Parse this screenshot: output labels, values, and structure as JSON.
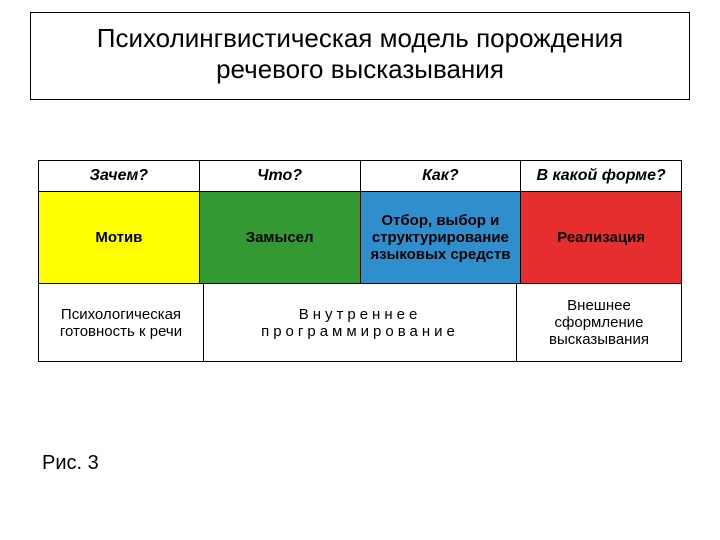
{
  "title_line1": "Психолингвистическая модель порождения",
  "title_line2": "речевого высказывания",
  "title_fontsize": 26,
  "questions": {
    "fontsize": 16,
    "items": [
      "Зачем?",
      "Что?",
      "Как?",
      "В какой форме?"
    ]
  },
  "stages": {
    "fontsize": 15,
    "text_color": "#000000",
    "cells": [
      {
        "label": "Мотив",
        "bg": "#ffff00"
      },
      {
        "label": "Замысел",
        "bg": "#339933"
      },
      {
        "label": "Отбор, выбор и структурирование языковых средств",
        "bg": "#2f8fcd"
      },
      {
        "label": "Реализация",
        "bg": "#e62e2e"
      }
    ]
  },
  "bottom": {
    "fontsize": 15,
    "cells": [
      {
        "label": "Психологическая готовность к речи",
        "span": 1,
        "letterspaced": false
      },
      {
        "label": "Внутреннее программирование",
        "span": 2,
        "letterspaced": true
      },
      {
        "label": "Внешнее сформление высказывания",
        "span": 1,
        "letterspaced": false
      }
    ]
  },
  "figure_label": "Рис. 3",
  "figure_label_fontsize": 20,
  "colors": {
    "background": "#ffffff",
    "border": "#000000",
    "text": "#000000"
  }
}
